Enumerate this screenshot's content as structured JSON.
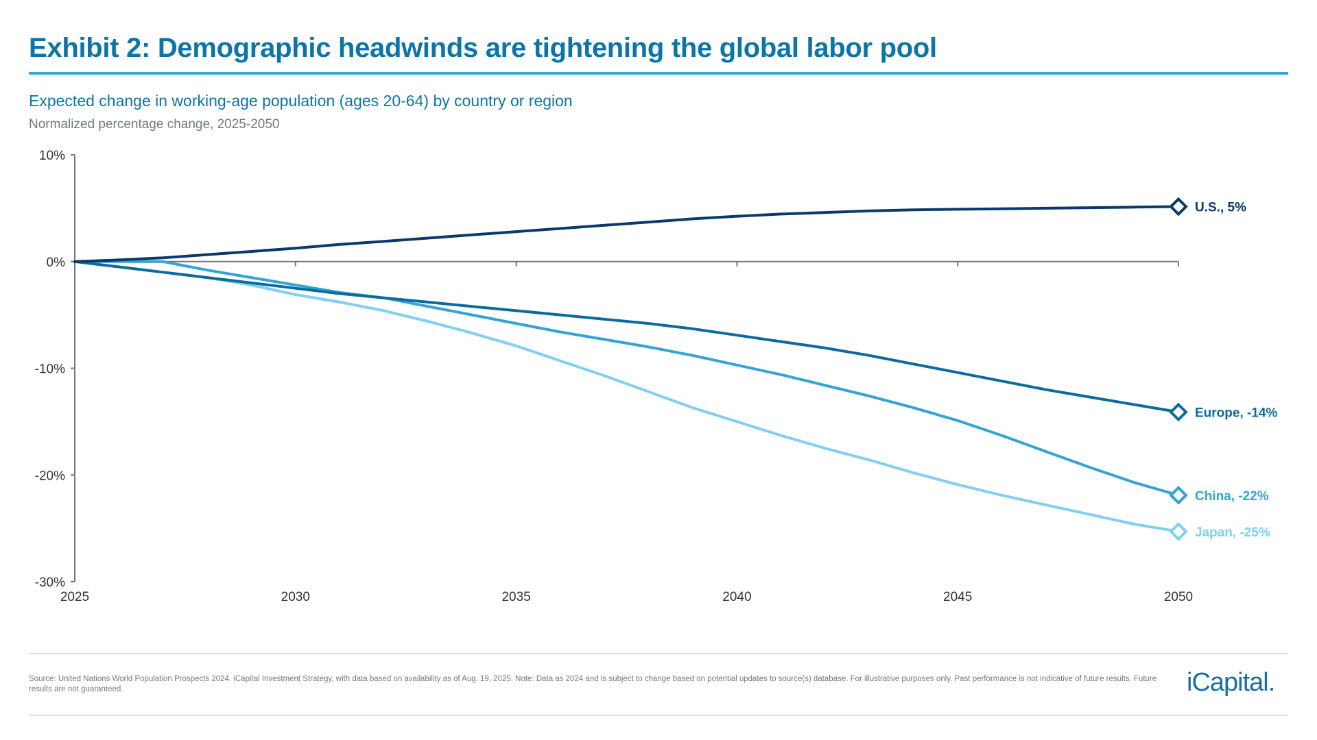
{
  "header": {
    "title": "Exhibit 2: Demographic headwinds are tightening the global labor pool",
    "subtitle": "Expected change in working-age population (ages 20-64) by country or region",
    "note": "Normalized percentage change, 2025-2050"
  },
  "chart_data": {
    "type": "line",
    "title": "Expected change in working-age population (ages 20-64) by country or region",
    "subtitle": "Normalized percentage change, 2025-2050",
    "xlabel": "",
    "ylabel": "",
    "xlim": [
      2025,
      2050
    ],
    "ylim": [
      -30,
      10
    ],
    "x_ticks": [
      "2025",
      "2030",
      "2035",
      "2040",
      "2045",
      "2050"
    ],
    "y_ticks": [
      "10%",
      "0%",
      "-10%",
      "-20%",
      "-30%"
    ],
    "y_tick_values": [
      10,
      0,
      -10,
      -20,
      -30
    ],
    "grid": false,
    "x": [
      2025,
      2026,
      2027,
      2028,
      2029,
      2030,
      2031,
      2032,
      2033,
      2034,
      2035,
      2036,
      2037,
      2038,
      2039,
      2040,
      2041,
      2042,
      2043,
      2044,
      2045,
      2046,
      2047,
      2048,
      2049,
      2050
    ],
    "series": [
      {
        "name": "U.S.",
        "end_label": "U.S., 5%",
        "color": "#0a3a6b",
        "values": [
          0,
          0.15,
          0.35,
          0.65,
          0.95,
          1.25,
          1.6,
          1.9,
          2.2,
          2.5,
          2.8,
          3.1,
          3.4,
          3.7,
          4.0,
          4.25,
          4.45,
          4.6,
          4.75,
          4.85,
          4.9,
          4.95,
          5.0,
          5.05,
          5.1,
          5.15
        ]
      },
      {
        "name": "Europe",
        "end_label": "Europe, -14%",
        "color": "#0b6b9c",
        "values": [
          0,
          -0.5,
          -1.0,
          -1.5,
          -2.0,
          -2.5,
          -3.0,
          -3.4,
          -3.8,
          -4.2,
          -4.6,
          -5.0,
          -5.4,
          -5.8,
          -6.3,
          -6.9,
          -7.5,
          -8.1,
          -8.8,
          -9.6,
          -10.4,
          -11.2,
          -12.0,
          -12.7,
          -13.4,
          -14.1
        ]
      },
      {
        "name": "China",
        "end_label": "China, -22%",
        "color": "#34a3d6",
        "values": [
          0,
          0,
          0,
          -0.8,
          -1.5,
          -2.2,
          -2.9,
          -3.4,
          -4.2,
          -5.0,
          -5.8,
          -6.6,
          -7.3,
          -8.0,
          -8.8,
          -9.7,
          -10.6,
          -11.6,
          -12.6,
          -13.7,
          -14.9,
          -16.3,
          -17.8,
          -19.3,
          -20.7,
          -21.9
        ]
      },
      {
        "name": "Japan",
        "end_label": "Japan, -25%",
        "color": "#7fd0f2",
        "values": [
          0,
          -0.5,
          -1.0,
          -1.5,
          -2.2,
          -3.1,
          -3.8,
          -4.6,
          -5.6,
          -6.7,
          -7.9,
          -9.3,
          -10.7,
          -12.2,
          -13.7,
          -15.0,
          -16.3,
          -17.5,
          -18.6,
          -19.8,
          -20.9,
          -21.9,
          -22.8,
          -23.7,
          -24.6,
          -25.3
        ]
      }
    ]
  },
  "footer": {
    "source": "Source: United Nations World Population Prospects 2024. iCapital Investment Strategy, with data based on availability as of Aug. 19, 2025. Note: Data as 2024 and is subject to change based on potential updates to source(s) database. For illustrative purposes only. Past performance is not indicative of future results. Future results are not guaranteed.",
    "logo": "iCapital."
  }
}
